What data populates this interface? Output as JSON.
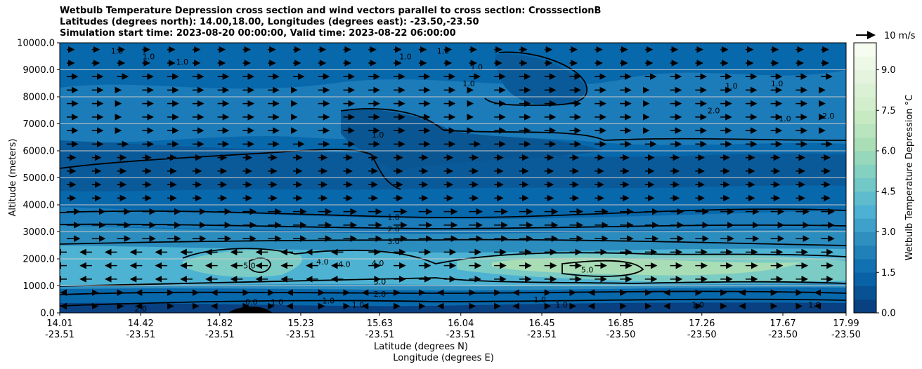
{
  "chart_data": {
    "type": "contour",
    "title_lines": [
      "Wetbulb Temperature Depression cross section and wind vectors parallel to cross section: CrosssectionB",
      "Latitudes (degrees north): 14.00,18.00, Longitudes (degrees east): -23.50,-23.50",
      "Simulation start time: 2023-08-20 00:00:00, Valid time: 2023-08-22 06:00:00"
    ],
    "ylabel": "Altitude (meters)",
    "xlabel_lat": "Latitude (degrees N)",
    "xlabel_lon": "Longitude (degrees E)",
    "ylim": [
      0,
      10000
    ],
    "yticks": [
      "0.0",
      "1000.0",
      "2000.0",
      "3000.0",
      "4000.0",
      "5000.0",
      "6000.0",
      "7000.0",
      "8000.0",
      "9000.0",
      "10000.0"
    ],
    "ytick_values": [
      0,
      1000,
      2000,
      3000,
      4000,
      5000,
      6000,
      7000,
      8000,
      9000,
      10000
    ],
    "xticks_lat": [
      "14.01",
      "14.42",
      "14.82",
      "15.23",
      "15.63",
      "16.04",
      "16.45",
      "16.85",
      "17.26",
      "17.67",
      "17.99"
    ],
    "xticks_lon": [
      "-23.51",
      "-23.51",
      "-23.51",
      "-23.51",
      "-23.51",
      "-23.51",
      "-23.51",
      "-23.50",
      "-23.50",
      "-23.50",
      "-23.50"
    ],
    "xlim": [
      14.01,
      17.99
    ],
    "grid": "horizontal",
    "colorbar": {
      "label": "Wetbulb Temperature Depression °C",
      "range": [
        0,
        10
      ],
      "ticks": [
        "0.0",
        "1.5",
        "3.0",
        "4.5",
        "6.0",
        "7.5",
        "9.0"
      ],
      "tick_values": [
        0,
        1.5,
        3,
        4.5,
        6,
        7.5,
        9
      ],
      "colors": [
        "#084081",
        "#0868ac",
        "#2b8cbe",
        "#4eb3d3",
        "#7bccc4",
        "#a8ddb5",
        "#ccebc5",
        "#e0f3db",
        "#f7fcf0"
      ]
    },
    "wind_key": "10 m/s",
    "contour_levels": [
      0.0,
      1.0,
      2.0,
      3.0,
      4.0,
      5.0
    ],
    "contour_labels": [
      {
        "text": "1.0",
        "lat": 15.7,
        "alt": 3550
      },
      {
        "text": "2.0",
        "lat": 15.7,
        "alt": 3100
      },
      {
        "text": "3.0",
        "lat": 15.7,
        "alt": 2650
      },
      {
        "text": "4.0",
        "lat": 15.62,
        "alt": 1850
      },
      {
        "text": "1.0",
        "lat": 15.62,
        "alt": 6600
      },
      {
        "text": "5.0",
        "lat": 14.97,
        "alt": 1750
      },
      {
        "text": "4.0",
        "lat": 15.34,
        "alt": 1900
      },
      {
        "text": "4.0",
        "lat": 15.45,
        "alt": 1800
      },
      {
        "text": "5.0",
        "lat": 16.68,
        "alt": 1600
      },
      {
        "text": "3.0",
        "lat": 15.63,
        "alt": 1150
      },
      {
        "text": "2.0",
        "lat": 15.63,
        "alt": 700
      },
      {
        "text": "0.0",
        "lat": 14.98,
        "alt": 420
      },
      {
        "text": "1.0",
        "lat": 15.11,
        "alt": 400
      },
      {
        "text": "1.0",
        "lat": 15.37,
        "alt": 450
      },
      {
        "text": "1.0",
        "lat": 15.52,
        "alt": 300
      },
      {
        "text": "2.0",
        "lat": 14.42,
        "alt": 150
      },
      {
        "text": "1.0",
        "lat": 16.44,
        "alt": 500
      },
      {
        "text": "1.0",
        "lat": 16.55,
        "alt": 300
      },
      {
        "text": "1.0",
        "lat": 17.24,
        "alt": 300
      },
      {
        "text": "1.0",
        "lat": 17.83,
        "alt": 300
      },
      {
        "text": "1.0",
        "lat": 14.3,
        "alt": 9700
      },
      {
        "text": "1.0",
        "lat": 14.46,
        "alt": 9500
      },
      {
        "text": "1.0",
        "lat": 14.63,
        "alt": 9300
      },
      {
        "text": "1.0",
        "lat": 15.76,
        "alt": 9500
      },
      {
        "text": "1.0",
        "lat": 15.95,
        "alt": 9700
      },
      {
        "text": "1.0",
        "lat": 16.12,
        "alt": 9100
      },
      {
        "text": "1.0",
        "lat": 16.08,
        "alt": 8500
      },
      {
        "text": "1.0",
        "lat": 17.41,
        "alt": 8400
      },
      {
        "text": "1.0",
        "lat": 17.64,
        "alt": 8500
      },
      {
        "text": "1.0",
        "lat": 17.68,
        "alt": 7200
      },
      {
        "text": "2.0",
        "lat": 17.32,
        "alt": 7500
      },
      {
        "text": "2.0",
        "lat": 17.9,
        "alt": 7300
      }
    ]
  }
}
